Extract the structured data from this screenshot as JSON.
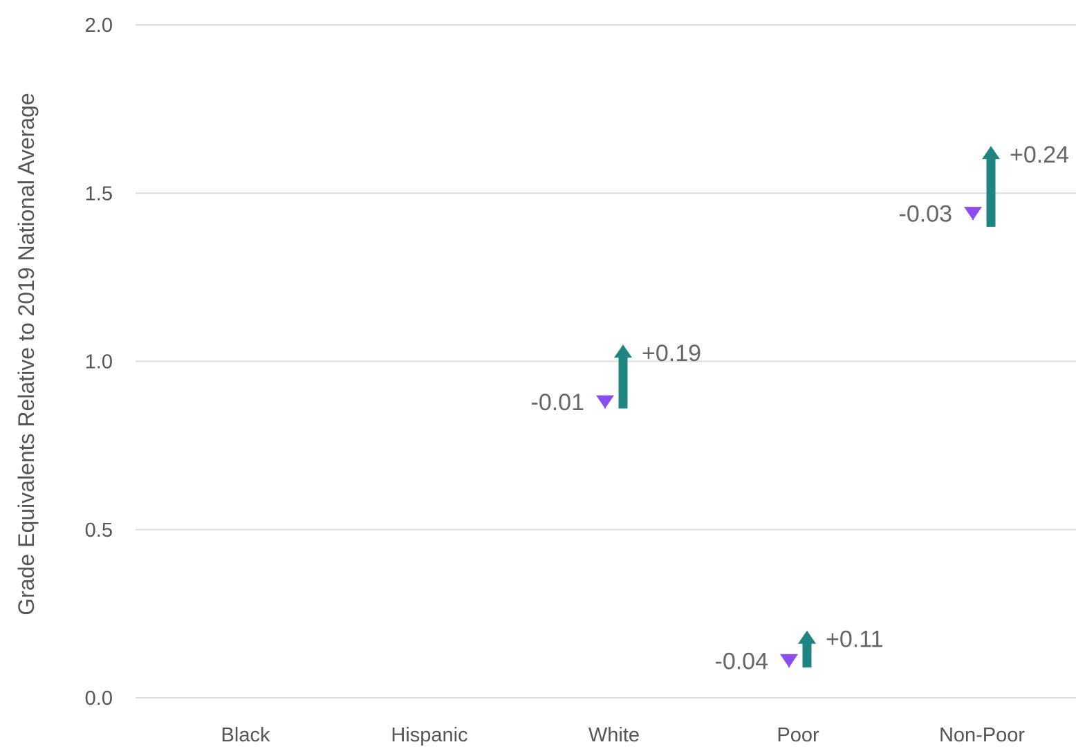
{
  "chart_data": {
    "type": "arrow",
    "ylabel": "Grade Equivalents Relative to 2019 National Average",
    "ylim": [
      0,
      2
    ],
    "yticks": [
      "0.0",
      "0.5",
      "1.0",
      "1.5",
      "2.0"
    ],
    "ytick_values": [
      0,
      0.5,
      1.0,
      1.5,
      2.0
    ],
    "grid": true,
    "categories": [
      "Black",
      "Hispanic",
      "White",
      "Poor",
      "Non-Poor"
    ],
    "series": [
      {
        "values": [
          null,
          null,
          0.87,
          0.13,
          1.45
        ],
        "changes": [
          null,
          null,
          -0.01,
          -0.04,
          -0.03
        ],
        "labels": [
          null,
          null,
          "-0.01",
          "-0.04",
          "-0.03"
        ],
        "color": "#8b4cf2",
        "direction": "down"
      },
      {
        "values": [
          null,
          null,
          0.86,
          0.09,
          1.4
        ],
        "changes": [
          null,
          null,
          0.19,
          0.11,
          0.24
        ],
        "labels": [
          null,
          null,
          "+0.19",
          "+0.11",
          "+0.24"
        ],
        "color": "#1f8582",
        "direction": "up"
      }
    ]
  }
}
